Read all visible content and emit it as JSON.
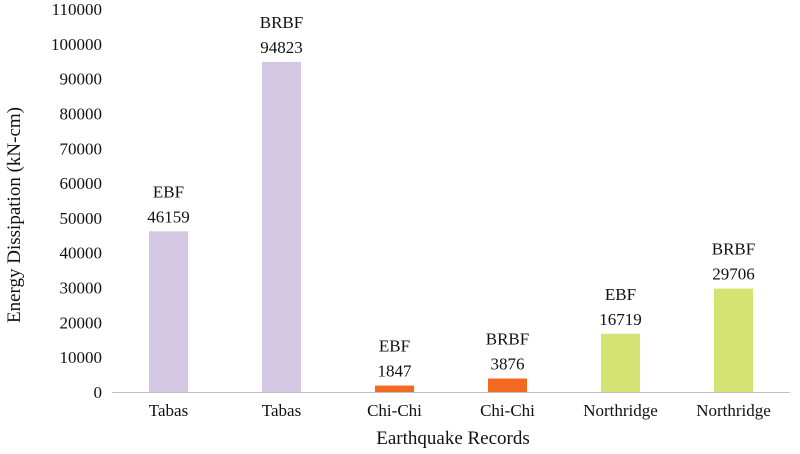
{
  "chart_data": {
    "type": "bar",
    "title": "",
    "xlabel": "Earthquake Records",
    "ylabel": "Energy Dissipation (kN-cm)",
    "ylim": [
      0,
      110000
    ],
    "ytick_step": 10000,
    "ytick_labels": [
      "0",
      "10000",
      "20000",
      "30000",
      "40000",
      "50000",
      "60000",
      "70000",
      "80000",
      "90000",
      "100000",
      "110000"
    ],
    "grid": false,
    "legend": "none",
    "categories": [
      "Tabas",
      "Tabas",
      "Chi-Chi",
      "Chi-Chi",
      "Northridge",
      "Northridge"
    ],
    "values": [
      46159,
      94823,
      1847,
      3876,
      16719,
      29706
    ],
    "frame_types": [
      "EBF",
      "BRBF",
      "EBF",
      "BRBF",
      "EBF",
      "BRBF"
    ],
    "value_labels": [
      "46159",
      "94823",
      "1847",
      "3876",
      "16719",
      "29706"
    ],
    "bar_colors": [
      "#d3c7e3",
      "#d3c7e3",
      "#f26a21",
      "#f26a21",
      "#d4e372",
      "#d4e372"
    ]
  }
}
